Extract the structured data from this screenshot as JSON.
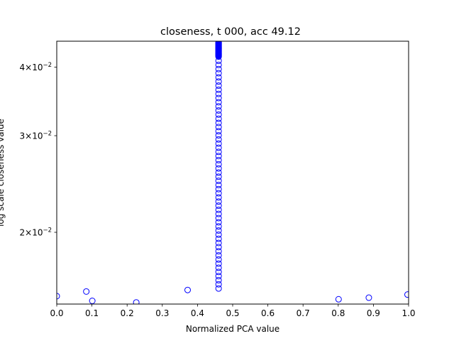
{
  "chart_data": {
    "type": "scatter",
    "title": "closeness, t 000, acc 49.12",
    "xlabel": "Normalized PCA value",
    "ylabel": "log scale closeness value",
    "xlim": [
      0.0,
      1.0
    ],
    "ylim": [
      0.0148,
      0.0446
    ],
    "yscale": "log",
    "grid": false,
    "marker": "open-circle",
    "marker_color": "#0000ff",
    "x_ticks": [
      {
        "value": 0.0,
        "label": "0.0"
      },
      {
        "value": 0.1,
        "label": "0.1"
      },
      {
        "value": 0.2,
        "label": "0.2"
      },
      {
        "value": 0.3,
        "label": "0.3"
      },
      {
        "value": 0.4,
        "label": "0.4"
      },
      {
        "value": 0.5,
        "label": "0.5"
      },
      {
        "value": 0.6,
        "label": "0.6"
      },
      {
        "value": 0.7,
        "label": "0.7"
      },
      {
        "value": 0.8,
        "label": "0.8"
      },
      {
        "value": 0.9,
        "label": "0.9"
      },
      {
        "value": 1.0,
        "label": "1.0"
      }
    ],
    "y_ticks": [
      {
        "value": 0.02,
        "label_mantissa": "2",
        "label_base": "10",
        "label_exp": "−2"
      },
      {
        "value": 0.03,
        "label_mantissa": "3",
        "label_base": "10",
        "label_exp": "−2"
      },
      {
        "value": 0.04,
        "label_mantissa": "4",
        "label_base": "10",
        "label_exp": "−2"
      }
    ],
    "cluster": {
      "x": 0.46,
      "y_min": 0.0158,
      "y_max": 0.0444,
      "count": 95,
      "dense_top_y": 0.0418
    },
    "outliers": [
      {
        "x": 0.0,
        "y": 0.0153
      },
      {
        "x": 0.084,
        "y": 0.0156
      },
      {
        "x": 0.101,
        "y": 0.015
      },
      {
        "x": 0.226,
        "y": 0.0149
      },
      {
        "x": 0.372,
        "y": 0.0157
      },
      {
        "x": 0.801,
        "y": 0.0151
      },
      {
        "x": 0.887,
        "y": 0.0152
      },
      {
        "x": 0.997,
        "y": 0.0154
      }
    ]
  }
}
